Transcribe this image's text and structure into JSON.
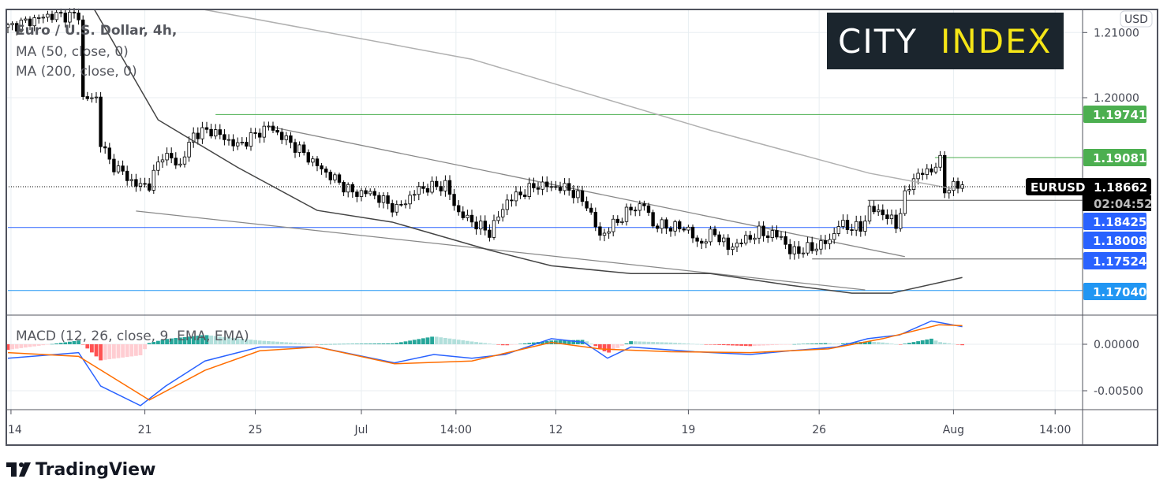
{
  "title": "Euro / U.S. Dollar, 4h,",
  "indicators": [
    "MA (50, close, 0)",
    "MA (200, close, 0)"
  ],
  "macd_label": "MACD (12, 26, close, 9, EMA, EMA)",
  "currency": "USD",
  "logo": {
    "city": "CITY",
    "index": "INDEX"
  },
  "brand": "TradingView",
  "symbol": "EURUSD",
  "last_price": "1.18662",
  "countdown": "02:04:52",
  "colors": {
    "up": "#ffffff",
    "down": "#000000",
    "ma50": "#444444",
    "ma200": "#b0b0b0",
    "green": "#4caf50",
    "blue": "#2962ff",
    "lightblue": "#2196f3",
    "macd": "#2962ff",
    "signal": "#ff6d00",
    "hist_up": "#26a69a",
    "hist_up_light": "#b2dfdb",
    "hist_dn": "#ff5252",
    "hist_dn_light": "#ffcdd2"
  },
  "chart_data": {
    "type": "candlestick",
    "price_axis": {
      "ticks": [
        "1.21000",
        "1.20000"
      ],
      "tick_values": [
        1.21,
        1.2
      ],
      "range": [
        1.1666,
        1.2135
      ]
    },
    "time_axis": {
      "labels": [
        "14",
        "21",
        "25",
        "Jul",
        "14:00",
        "12",
        "19",
        "26",
        "Aug",
        "14:00"
      ],
      "candle_index": [
        0.7,
        31,
        56,
        80,
        101.4,
        124,
        154,
        183.6,
        214,
        237
      ]
    },
    "price_path": [
      [
        0,
        1.2108
      ],
      [
        9,
        1.2126
      ],
      [
        16,
        1.2126
      ],
      [
        17,
        1.1999
      ],
      [
        20,
        1.1999
      ],
      [
        21,
        1.1932
      ],
      [
        23,
        1.1902
      ],
      [
        29,
        1.1866
      ],
      [
        32,
        1.1866
      ],
      [
        35,
        1.1914
      ],
      [
        39,
        1.1896
      ],
      [
        42,
        1.1944
      ],
      [
        46,
        1.195
      ],
      [
        52,
        1.1926
      ],
      [
        59,
        1.1956
      ],
      [
        66,
        1.192
      ],
      [
        71,
        1.189
      ],
      [
        78,
        1.1854
      ],
      [
        82,
        1.1854
      ],
      [
        88,
        1.1829
      ],
      [
        93,
        1.186
      ],
      [
        99,
        1.1866
      ],
      [
        102,
        1.1823
      ],
      [
        109,
        1.1793
      ],
      [
        113,
        1.1842
      ],
      [
        120,
        1.1866
      ],
      [
        127,
        1.186
      ],
      [
        131,
        1.1836
      ],
      [
        134,
        1.1787
      ],
      [
        137,
        1.1805
      ],
      [
        141,
        1.1829
      ],
      [
        144,
        1.1836
      ],
      [
        146,
        1.1805
      ],
      [
        154,
        1.1799
      ],
      [
        156,
        1.1775
      ],
      [
        160,
        1.1793
      ],
      [
        163,
        1.1769
      ],
      [
        170,
        1.1793
      ],
      [
        175,
        1.1787
      ],
      [
        177,
        1.1763
      ],
      [
        182,
        1.1769
      ],
      [
        186,
        1.1781
      ],
      [
        188,
        1.1805
      ],
      [
        193,
        1.1799
      ],
      [
        195,
        1.1829
      ],
      [
        198,
        1.1823
      ],
      [
        201,
        1.1805
      ],
      [
        203,
        1.1848
      ],
      [
        205,
        1.1878
      ],
      [
        209,
        1.189
      ],
      [
        211,
        1.1902
      ],
      [
        212,
        1.186
      ],
      [
        216,
        1.18662
      ]
    ],
    "ma50": [
      [
        19.6,
        1.2135
      ],
      [
        34,
        1.1966
      ],
      [
        52,
        1.1893
      ],
      [
        70,
        1.1827
      ],
      [
        87,
        1.1809
      ],
      [
        109,
        1.1766
      ],
      [
        123,
        1.1742
      ],
      [
        141,
        1.173
      ],
      [
        159,
        1.173
      ],
      [
        177,
        1.1712
      ],
      [
        191,
        1.17
      ],
      [
        200,
        1.17
      ],
      [
        216,
        1.1724
      ]
    ],
    "ma200": [
      [
        44.6,
        1.2135
      ],
      [
        105,
        1.2059
      ],
      [
        159,
        1.195
      ],
      [
        195,
        1.1884
      ],
      [
        214,
        1.186
      ]
    ],
    "levels": [
      {
        "label": "1.19741",
        "value": 1.19741,
        "color": "green",
        "from": 47
      },
      {
        "label": "1.19081",
        "value": 1.19081,
        "color": "green",
        "from": 209.8
      },
      {
        "label": "1.18425",
        "value": 1.18425,
        "color": "blue",
        "from": 194.6
      },
      {
        "label": "1.18008",
        "value": 1.18008,
        "color": "blue",
        "from": 0
      },
      {
        "label": "1.17524",
        "value": 1.17524,
        "color": "blue",
        "from": 182
      },
      {
        "label": "1.17040",
        "value": 1.1704,
        "color": "lightblue",
        "from": 0
      }
    ],
    "trendlines": [
      [
        [
          59,
          1.1956
        ],
        [
          203,
          1.1756
        ]
      ],
      [
        [
          29,
          1.1826
        ],
        [
          194,
          1.1705
        ]
      ]
    ],
    "macd_axis": {
      "ticks": [
        "0.00000",
        "-0.00500"
      ],
      "tick_values": [
        0,
        -0.005
      ]
    },
    "macd": [
      [
        0,
        -0.0015
      ],
      [
        16,
        -0.0009
      ],
      [
        21,
        -0.0045
      ],
      [
        30,
        -0.0066
      ],
      [
        35.7,
        -0.0045
      ],
      [
        44.6,
        -0.0018
      ],
      [
        57,
        -0.0003
      ],
      [
        70,
        -0.0003
      ],
      [
        87.5,
        -0.002
      ],
      [
        96.4,
        -0.0011
      ],
      [
        105,
        -0.0015
      ],
      [
        112.5,
        -0.0011
      ],
      [
        123,
        0.0006
      ],
      [
        130.4,
        0.0002
      ],
      [
        135.7,
        -0.0015
      ],
      [
        141,
        -0.0003
      ],
      [
        155.4,
        -0.0008
      ],
      [
        168,
        -0.0011
      ],
      [
        177,
        -0.0007
      ],
      [
        187.5,
        -0.0003
      ],
      [
        194.6,
        0.0006
      ],
      [
        201.8,
        0.001
      ],
      [
        209,
        0.0025
      ],
      [
        216,
        0.0019
      ]
    ],
    "signal": [
      [
        0,
        -0.0009
      ],
      [
        16,
        -0.0013
      ],
      [
        32,
        -0.006
      ],
      [
        44.6,
        -0.0028
      ],
      [
        57,
        -0.0007
      ],
      [
        70,
        -0.0003
      ],
      [
        87.5,
        -0.0021
      ],
      [
        105,
        -0.0018
      ],
      [
        123,
        0.0002
      ],
      [
        134,
        -0.0005
      ],
      [
        150,
        -0.0008
      ],
      [
        168,
        -0.0009
      ],
      [
        185.7,
        -0.0005
      ],
      [
        198,
        0.0006
      ],
      [
        210.7,
        0.0021
      ],
      [
        216,
        0.002
      ]
    ]
  }
}
